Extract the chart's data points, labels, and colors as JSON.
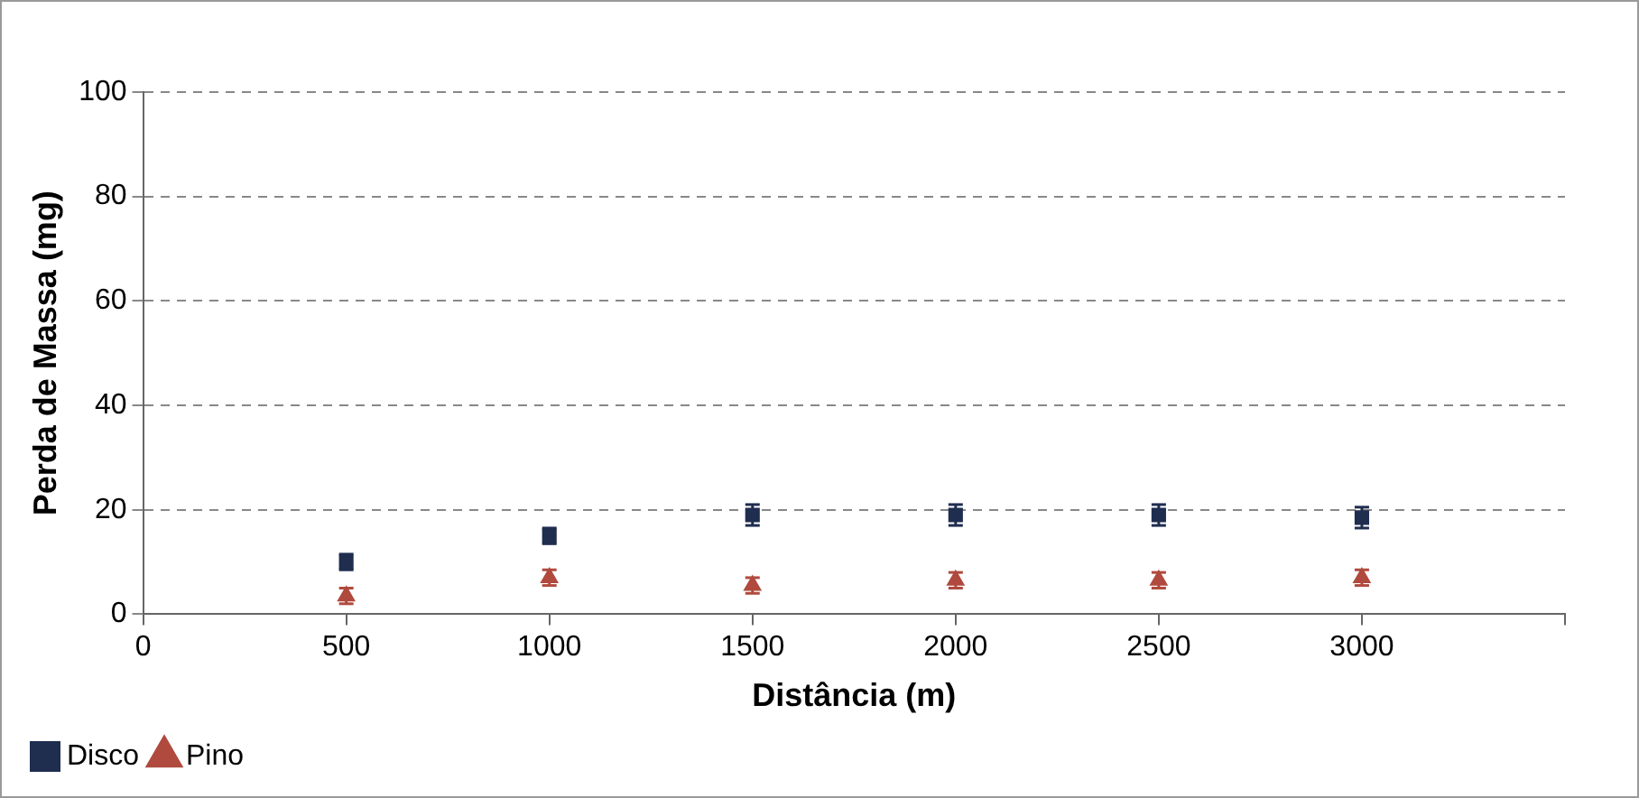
{
  "chart_data": {
    "type": "scatter",
    "xlabel": "Distância (m)",
    "ylabel": "Perda de Massa (mg)",
    "x": [
      500,
      1000,
      1500,
      2000,
      2500,
      3000
    ],
    "series": [
      {
        "name": "Disco",
        "color": "#1f2d4f",
        "marker": "square",
        "values": [
          10,
          15,
          19,
          19,
          19,
          18.5
        ],
        "errors": [
          1.5,
          1.5,
          2,
          2,
          2,
          2
        ]
      },
      {
        "name": "Pino",
        "color": "#b04a3e",
        "marker": "triangle",
        "values": [
          3.5,
          7,
          5.5,
          6.5,
          6.5,
          7
        ],
        "errors": [
          1.5,
          1.5,
          1.5,
          1.5,
          1.5,
          1.5
        ]
      }
    ],
    "xlim": [
      0,
      3500
    ],
    "xticks": [
      0,
      500,
      1000,
      1500,
      2000,
      2500,
      3000,
      {
        "value": 3500,
        "label": null
      }
    ],
    "ylim": [
      0,
      100
    ],
    "yticks": [
      0,
      20,
      40,
      60,
      80,
      100
    ],
    "grid": "y",
    "legend": "bottom left"
  }
}
